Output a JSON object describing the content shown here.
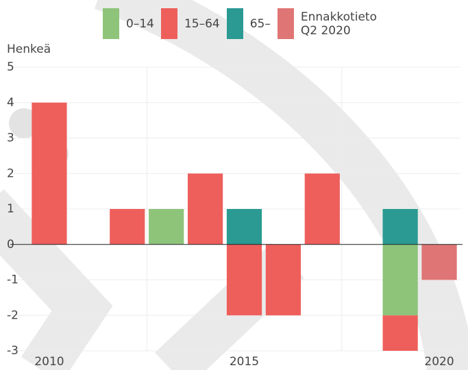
{
  "chart_data": {
    "type": "bar",
    "stacked": true,
    "y_label": "Henkeä",
    "categories": [
      "2010",
      null,
      null,
      null,
      null,
      "2015",
      null,
      null,
      null,
      null,
      "2020"
    ],
    "series": [
      {
        "name": "0–14",
        "color": "#8dc47a",
        "values": [
          null,
          null,
          null,
          1,
          null,
          null,
          null,
          null,
          null,
          -2,
          null
        ]
      },
      {
        "name": "15–64",
        "color": "#ee5f5b",
        "values": [
          4,
          null,
          1,
          null,
          2,
          -2,
          -2,
          2,
          null,
          -1,
          null
        ]
      },
      {
        "name": "65–",
        "color": "#2a9a92",
        "values": [
          null,
          null,
          null,
          null,
          null,
          1,
          null,
          null,
          null,
          1,
          null
        ]
      },
      {
        "name": "Ennakkotieto Q2 2020",
        "color": "#e07575",
        "values": [
          null,
          null,
          null,
          null,
          null,
          null,
          null,
          null,
          null,
          null,
          -1
        ]
      }
    ],
    "ylim": [
      -3,
      5
    ],
    "yticks": [
      -3,
      -2,
      -1,
      0,
      1,
      2,
      3,
      4,
      5
    ],
    "grid": true
  }
}
